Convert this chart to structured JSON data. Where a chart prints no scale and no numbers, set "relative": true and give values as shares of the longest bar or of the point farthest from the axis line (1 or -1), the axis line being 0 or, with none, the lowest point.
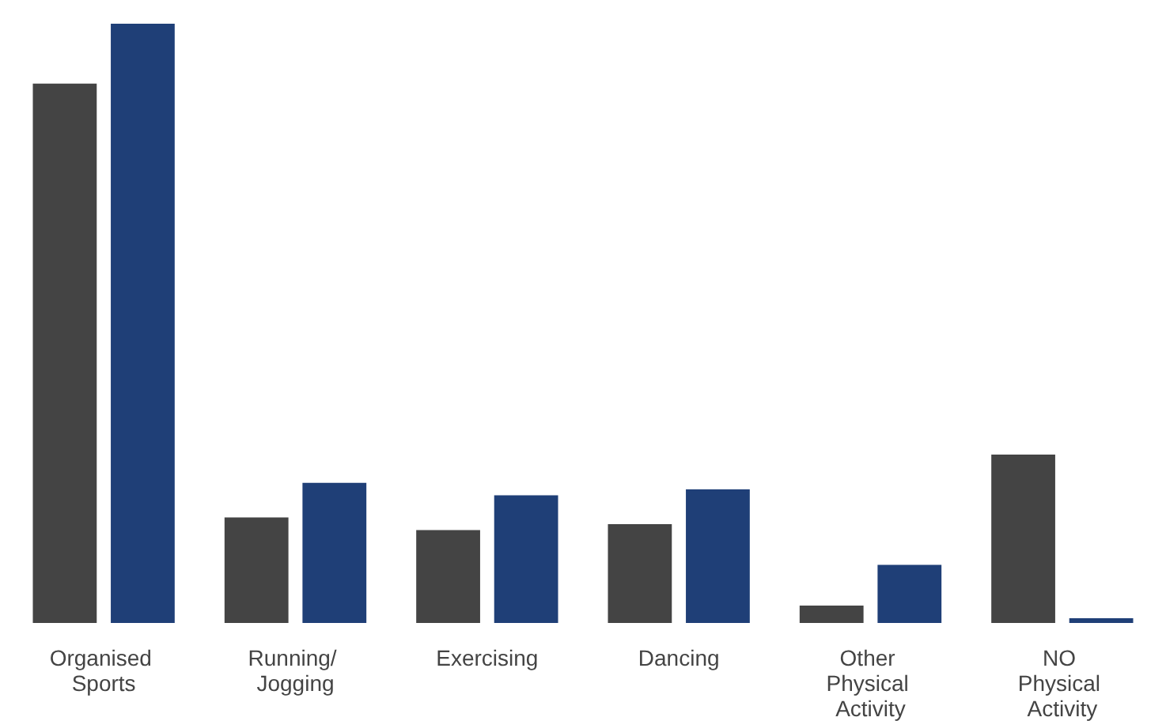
{
  "chart_data": {
    "type": "bar",
    "relative": true,
    "categories": [
      "Organised Sports",
      "Running/ Jogging",
      "Exercising",
      "Dancing",
      "Other Physical Activity",
      "NO Physical Activity"
    ],
    "series": [
      {
        "color": "#444444",
        "values": [
          0.9,
          0.176,
          0.155,
          0.165,
          0.029,
          0.281
        ]
      },
      {
        "color": "#1f3f77",
        "values": [
          1,
          0.234,
          0.213,
          0.223,
          0.097,
          0.008
        ]
      }
    ]
  }
}
